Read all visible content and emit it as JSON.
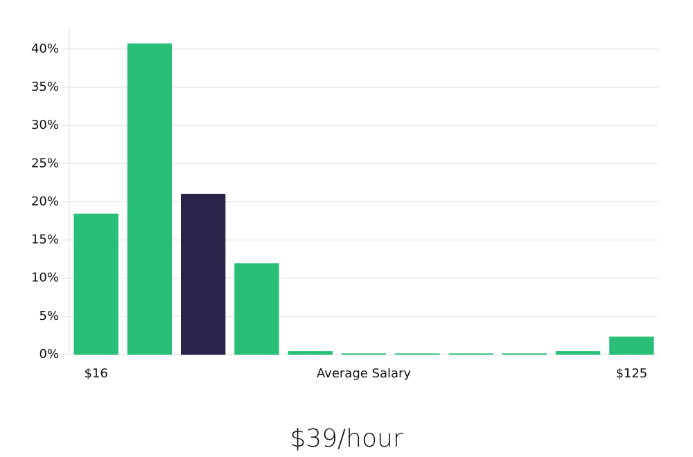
{
  "chart_data": {
    "type": "bar",
    "title": "$39/hour",
    "x_label": "Average Salary",
    "categories": [
      "$16",
      null,
      null,
      null,
      null,
      null,
      null,
      null,
      null,
      null,
      "$125"
    ],
    "values": [
      18.4,
      40.7,
      21.0,
      11.9,
      0.4,
      0.1,
      0.1,
      0.1,
      0.1,
      0.4,
      2.3
    ],
    "colors": [
      "#2abf78",
      "#2abf78",
      "#29254a",
      "#2abf78",
      "#2abf78",
      "#2abf78",
      "#2abf78",
      "#2abf78",
      "#2abf78",
      "#2abf78",
      "#2abf78"
    ],
    "ylim": [
      0,
      42.8
    ],
    "yticks": [
      {
        "value": 0,
        "label": "0%"
      },
      {
        "value": 5,
        "label": "5%"
      },
      {
        "value": 10,
        "label": "10%"
      },
      {
        "value": 15,
        "label": "15%"
      },
      {
        "value": 20,
        "label": "20%"
      },
      {
        "value": 25,
        "label": "25%"
      },
      {
        "value": 30,
        "label": "30%"
      },
      {
        "value": 35,
        "label": "35%"
      },
      {
        "value": 40,
        "label": "40%"
      }
    ],
    "grid": true
  }
}
